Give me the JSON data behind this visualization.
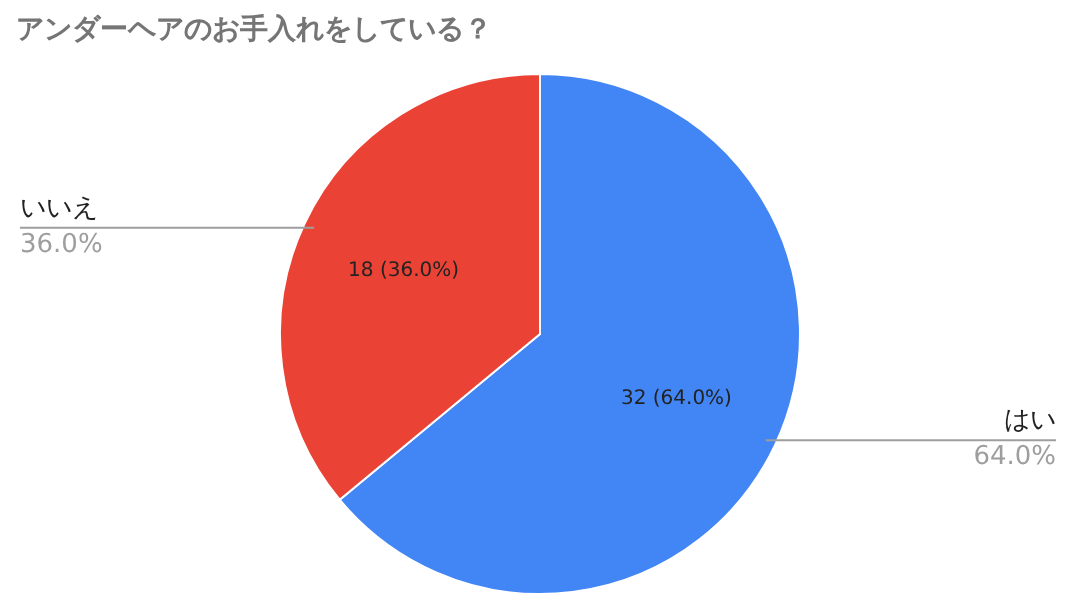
{
  "chart_data": {
    "type": "pie",
    "title": "アンダーヘアのお手入れをしている？",
    "categories": [
      "はい",
      "いいえ"
    ],
    "values": [
      32,
      18
    ],
    "colors": [
      "#4285f4",
      "#ea4335"
    ],
    "value_labels": [
      "32 (64.0%)",
      "18 (36.0%)"
    ],
    "annotations": [
      "64.0%",
      "36.0%"
    ],
    "legend": false
  }
}
